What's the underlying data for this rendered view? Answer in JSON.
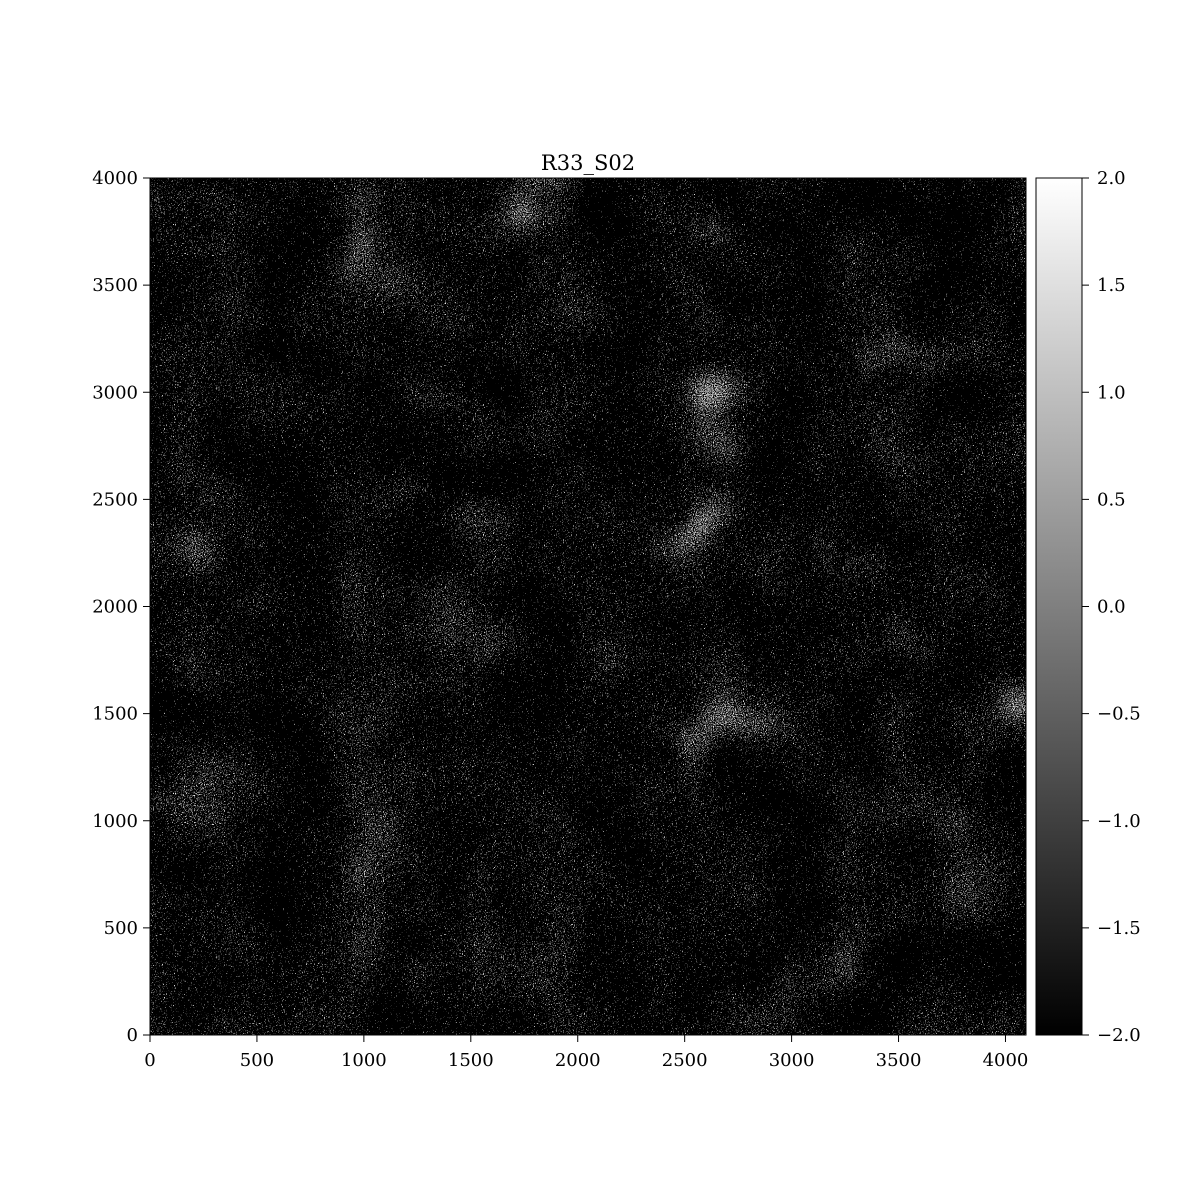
{
  "chart_data": {
    "type": "heatmap",
    "title": "R33_S02",
    "xlabel": "",
    "ylabel": "",
    "xlim": [
      0,
      4096
    ],
    "ylim": [
      0,
      4000
    ],
    "x_ticks": [
      0,
      500,
      1000,
      1500,
      2000,
      2500,
      3000,
      3500,
      4000
    ],
    "x_tick_labels": [
      "0",
      "500",
      "1000",
      "1500",
      "2000",
      "2500",
      "3000",
      "3500",
      "4000"
    ],
    "y_ticks": [
      0,
      500,
      1000,
      1500,
      2000,
      2500,
      3000,
      3500,
      4000
    ],
    "y_tick_labels": [
      "0",
      "500",
      "1000",
      "1500",
      "2000",
      "2500",
      "3000",
      "3500",
      "4000"
    ],
    "colormap": "gray",
    "color_range": [
      -2.0,
      2.0
    ],
    "colorbar_ticks": [
      2.0,
      1.5,
      1.0,
      0.5,
      0.0,
      -0.5,
      -1.0,
      -1.5,
      -2.0
    ],
    "colorbar_tick_labels": [
      "2.0",
      "1.5",
      "1.0",
      "0.5",
      "0.0",
      "−0.5",
      "−1.0",
      "−1.5",
      "−2.0"
    ],
    "grid": false,
    "colorbar_placement": "right",
    "content": "dense pixel noise, values spanning roughly -2 to 2"
  }
}
